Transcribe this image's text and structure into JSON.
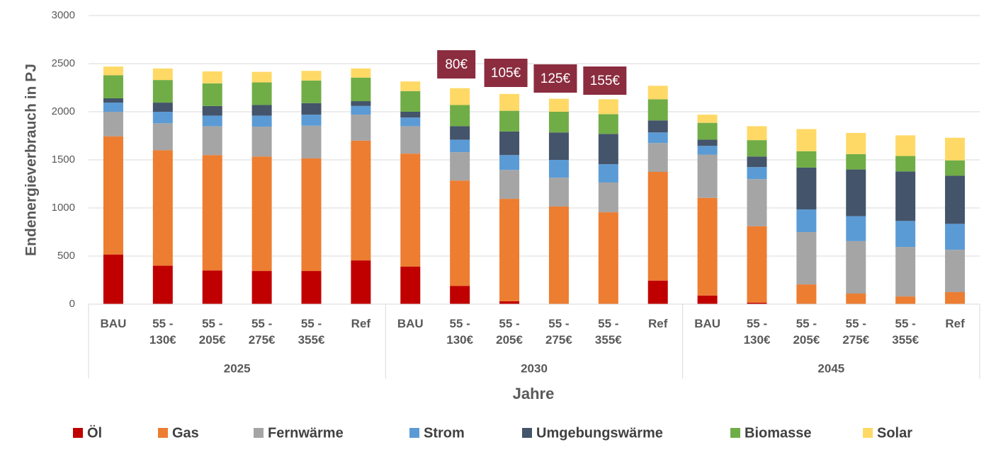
{
  "chart_data": {
    "type": "stacked_bar",
    "y_label": "Endenergieverbrauch in PJ",
    "x_label": "Jahre",
    "categories": [
      "BAU",
      "55 - 130€",
      "55 - 205€",
      "55 - 275€",
      "55 - 355€",
      "Ref",
      "BAU",
      "55 - 130€",
      "55 - 205€",
      "55 - 275€",
      "55 - 355€",
      "Ref",
      "BAU",
      "55 - 130€",
      "55 - 205€",
      "55 - 275€",
      "55 - 355€",
      "Ref"
    ],
    "groups": [
      "2025",
      "2030",
      "2045"
    ],
    "annotations": [
      "80€",
      "105€",
      "125€",
      "155€"
    ],
    "annotation_color": "#8b2c3f",
    "series": [
      {
        "name": "Öl",
        "color": "#c00000",
        "values": [
          515,
          400,
          350,
          345,
          345,
          455,
          390,
          190,
          30,
          0,
          0,
          245,
          90,
          15,
          0,
          0,
          0,
          0
        ]
      },
      {
        "name": "Gas",
        "color": "#ed7d31",
        "values": [
          1230,
          1200,
          1200,
          1190,
          1170,
          1245,
          1175,
          1095,
          1065,
          1015,
          955,
          1130,
          1015,
          795,
          205,
          110,
          80,
          125
        ]
      },
      {
        "name": "Fernwärme",
        "color": "#a5a5a5",
        "values": [
          255,
          280,
          300,
          310,
          340,
          270,
          285,
          295,
          300,
          300,
          310,
          300,
          450,
          490,
          545,
          545,
          515,
          440
        ]
      },
      {
        "name": "Strom",
        "color": "#5b9bd5",
        "values": [
          95,
          120,
          110,
          115,
          115,
          90,
          90,
          130,
          155,
          185,
          190,
          110,
          90,
          125,
          235,
          260,
          270,
          270
        ]
      },
      {
        "name": "Umgebungswärme",
        "color": "#44546a",
        "values": [
          45,
          95,
          100,
          110,
          120,
          50,
          60,
          140,
          245,
          285,
          315,
          125,
          65,
          110,
          435,
          485,
          515,
          500
        ]
      },
      {
        "name": "Biomasse",
        "color": "#70ad47",
        "values": [
          240,
          235,
          235,
          235,
          235,
          245,
          215,
          220,
          215,
          215,
          205,
          220,
          175,
          170,
          170,
          160,
          160,
          160
        ]
      },
      {
        "name": "Solar",
        "color": "#ffd966",
        "values": [
          90,
          120,
          125,
          110,
          100,
          95,
          100,
          175,
          175,
          135,
          155,
          140,
          85,
          145,
          230,
          220,
          215,
          235
        ]
      }
    ],
    "ylim": [
      0,
      3000
    ],
    "yticks": [
      0,
      500,
      1000,
      1500,
      2000,
      2500,
      3000
    ],
    "grid": true
  }
}
